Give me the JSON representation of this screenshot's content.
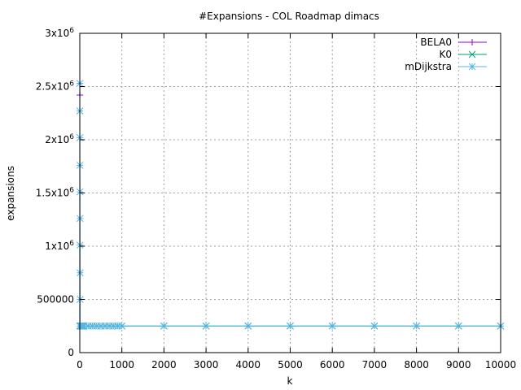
{
  "chart_data": {
    "type": "line",
    "title": "#Expansions - COL Roadmap dimacs",
    "xlabel": "k",
    "ylabel": "expansions",
    "xlim": [
      0,
      10000
    ],
    "ylim": [
      0,
      3000000
    ],
    "grid": true,
    "legend_position": "top-right",
    "x_ticks": [
      {
        "value": 0,
        "label": "0"
      },
      {
        "value": 1000,
        "label": "1000"
      },
      {
        "value": 2000,
        "label": "2000"
      },
      {
        "value": 3000,
        "label": "3000"
      },
      {
        "value": 4000,
        "label": "4000"
      },
      {
        "value": 5000,
        "label": "5000"
      },
      {
        "value": 6000,
        "label": "6000"
      },
      {
        "value": 7000,
        "label": "7000"
      },
      {
        "value": 8000,
        "label": "8000"
      },
      {
        "value": 9000,
        "label": "9000"
      },
      {
        "value": 10000,
        "label": "10000"
      }
    ],
    "y_ticks": [
      {
        "value": 0,
        "label": "0"
      },
      {
        "value": 500000,
        "label": "500000"
      },
      {
        "value": 1000000,
        "label": "1x10",
        "sup": "6"
      },
      {
        "value": 1500000,
        "label": "1.5x10",
        "sup": "6"
      },
      {
        "value": 2000000,
        "label": "2x10",
        "sup": "6"
      },
      {
        "value": 2500000,
        "label": "2.5x10",
        "sup": "6"
      },
      {
        "value": 3000000,
        "label": "3x10",
        "sup": "6"
      }
    ],
    "series": [
      {
        "name": "BELA0",
        "color": "#9400d3",
        "marker": "plus",
        "x": [
          1,
          2
        ],
        "y": [
          2530000,
          2420000
        ]
      },
      {
        "name": "K0",
        "color": "#009e73",
        "marker": "cross",
        "x": [
          1,
          10,
          20,
          30,
          40,
          50,
          60,
          70,
          80,
          90,
          100,
          200,
          300,
          400,
          500,
          600,
          700,
          800,
          900,
          1000,
          2000,
          3000,
          4000,
          5000,
          6000,
          7000,
          8000,
          9000,
          10000
        ],
        "y": [
          250000,
          250000,
          250000,
          250000,
          250000,
          250000,
          250000,
          250000,
          250000,
          250000,
          250000,
          250000,
          250000,
          250000,
          250000,
          250000,
          250000,
          250000,
          250000,
          250000,
          250000,
          250000,
          250000,
          250000,
          250000,
          250000,
          250000,
          250000,
          250000
        ]
      },
      {
        "name": "mDijkstra",
        "color": "#56b4e9",
        "marker": "star",
        "x": [
          1,
          2,
          3,
          4,
          5,
          6,
          7,
          8,
          9,
          10,
          20,
          30,
          40,
          50,
          60,
          70,
          80,
          90,
          100,
          200,
          300,
          400,
          500,
          600,
          700,
          800,
          900,
          1000,
          2000,
          3000,
          4000,
          5000,
          6000,
          7000,
          8000,
          9000,
          10000
        ],
        "y": [
          2530000,
          2270000,
          2020000,
          1760000,
          1510000,
          1260000,
          1010000,
          750000,
          500000,
          250000,
          250000,
          250000,
          250000,
          250000,
          250000,
          250000,
          250000,
          250000,
          250000,
          250000,
          250000,
          250000,
          250000,
          250000,
          250000,
          250000,
          250000,
          250000,
          250000,
          250000,
          250000,
          250000,
          250000,
          250000,
          250000,
          250000,
          250000
        ]
      }
    ]
  }
}
